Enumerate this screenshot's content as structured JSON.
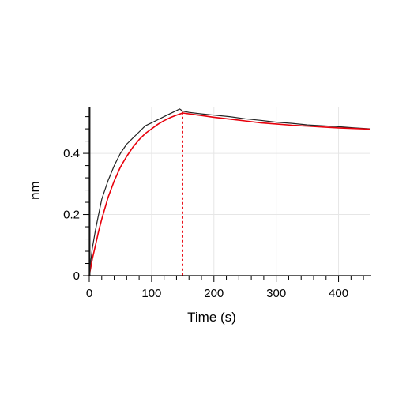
{
  "chart_data": {
    "type": "line",
    "title": "",
    "xlabel": "Time (s)",
    "ylabel": "nm",
    "xlim": [
      0,
      450
    ],
    "ylim": [
      0,
      0.55
    ],
    "x_ticks": [
      0,
      100,
      200,
      300,
      400
    ],
    "x_tick_labels": [
      "0",
      "100",
      "200",
      "300",
      "400"
    ],
    "y_ticks": [
      0,
      0.2,
      0.4
    ],
    "y_tick_labels": [
      "0",
      "0.2",
      "0.4"
    ],
    "grid": true,
    "legend": "none",
    "annotations": [
      {
        "type": "vertical-dashed-line",
        "x": 150,
        "color": "#e8000b"
      },
      {
        "type": "vertical-line",
        "x": 0,
        "color": "#333333"
      }
    ],
    "series": [
      {
        "role": "measured",
        "color": "#222222",
        "x": [
          0,
          2,
          5,
          10,
          15,
          20,
          30,
          40,
          50,
          60,
          70,
          80,
          90,
          100,
          110,
          120,
          130,
          140,
          145,
          150,
          160,
          180,
          200,
          225,
          250,
          275,
          300,
          325,
          350,
          375,
          400,
          425,
          450
        ],
        "y": [
          0.0,
          0.04,
          0.09,
          0.15,
          0.2,
          0.25,
          0.31,
          0.36,
          0.4,
          0.43,
          0.45,
          0.47,
          0.49,
          0.5,
          0.51,
          0.52,
          0.53,
          0.54,
          0.545,
          0.538,
          0.534,
          0.529,
          0.525,
          0.52,
          0.513,
          0.508,
          0.502,
          0.498,
          0.493,
          0.49,
          0.487,
          0.483,
          0.48
        ]
      },
      {
        "role": "fit",
        "color": "#e8000b",
        "x": [
          0,
          5,
          10,
          15,
          20,
          30,
          40,
          50,
          60,
          70,
          80,
          90,
          100,
          110,
          120,
          130,
          140,
          150,
          175,
          200,
          225,
          250,
          275,
          300,
          325,
          350,
          375,
          400,
          425,
          450
        ],
        "y": [
          0.0,
          0.055,
          0.1,
          0.145,
          0.185,
          0.255,
          0.31,
          0.355,
          0.39,
          0.42,
          0.445,
          0.465,
          0.48,
          0.495,
          0.507,
          0.517,
          0.525,
          0.532,
          0.525,
          0.518,
          0.512,
          0.506,
          0.5,
          0.496,
          0.492,
          0.489,
          0.486,
          0.483,
          0.481,
          0.479
        ]
      }
    ]
  }
}
